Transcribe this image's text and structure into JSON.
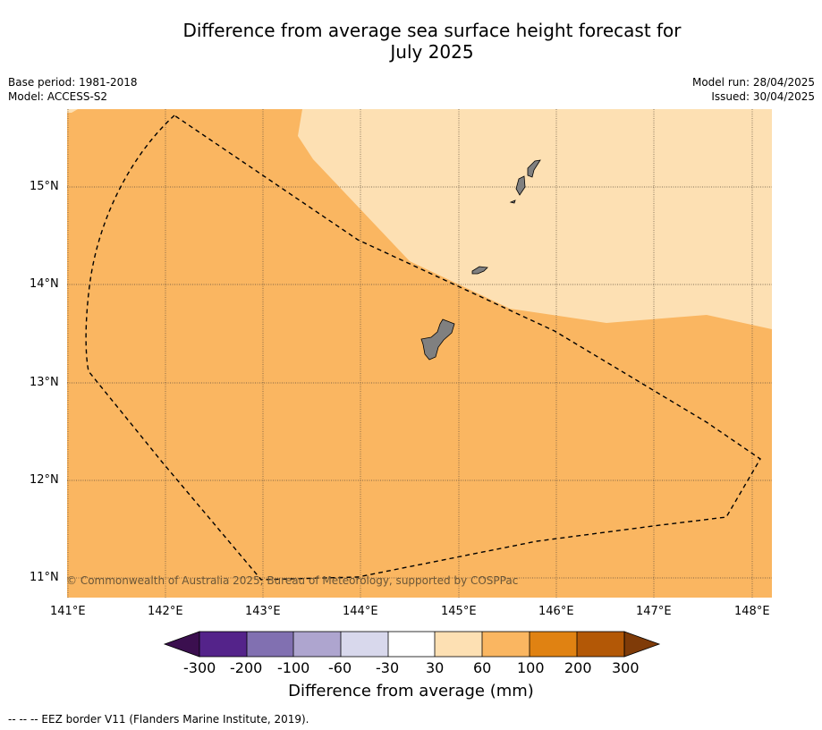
{
  "title_line1": "Difference from average sea surface height forecast for",
  "title_line2": "July 2025",
  "meta_left": {
    "base_period": "Base period: 1981-2018",
    "model": "Model: ACCESS-S2"
  },
  "meta_right": {
    "model_run": "Model run: 28/04/2025",
    "issued": "Issued: 30/04/2025"
  },
  "credit": "© Commonwealth of Australia 2025, Bureau of Meteorology, supported by COSPPac",
  "lat_labels": [
    "15°N",
    "14°N",
    "13°N",
    "12°N",
    "11°N"
  ],
  "lon_labels": [
    "141°E",
    "142°E",
    "143°E",
    "144°E",
    "145°E",
    "146°E",
    "147°E",
    "148°E"
  ],
  "colorbar": {
    "ticks": [
      "-300",
      "-200",
      "-100",
      "-60",
      "-30",
      "30",
      "60",
      "100",
      "200",
      "300"
    ],
    "colors": [
      "#3b0f4f",
      "#54238a",
      "#8170b1",
      "#aea5cf",
      "#d8d8ec",
      "#ffffff",
      "#fde0b3",
      "#fab661",
      "#e08212",
      "#b35806",
      "#7f3b08"
    ],
    "label": "Difference from average (mm)"
  },
  "footer": "--  --  -- EEZ border V11 (Flanders Marine Institute, 2019).",
  "map_colors": {
    "main_fill": "#fab661",
    "light_fill": "#fde0b3",
    "land": "#808080"
  }
}
